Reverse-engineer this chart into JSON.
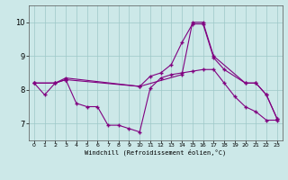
{
  "background_color": "#cce8e8",
  "line_color": "#800080",
  "marker": "+",
  "xlabel": "Windchill (Refroidissement éolien,°C)",
  "xlim": [
    -0.5,
    23.5
  ],
  "ylim": [
    6.5,
    10.5
  ],
  "yticks": [
    7,
    8,
    9,
    10
  ],
  "xticks": [
    0,
    1,
    2,
    3,
    4,
    5,
    6,
    7,
    8,
    9,
    10,
    11,
    12,
    13,
    14,
    15,
    16,
    17,
    18,
    19,
    20,
    21,
    22,
    23
  ],
  "series1_x": [
    0,
    1,
    2,
    3,
    4,
    5,
    6,
    7,
    8,
    9,
    10,
    11,
    12,
    13,
    14,
    15,
    16,
    17,
    18,
    19,
    20,
    21,
    22,
    23
  ],
  "series1_y": [
    8.2,
    7.85,
    8.2,
    8.3,
    7.6,
    7.5,
    7.5,
    6.95,
    6.95,
    6.85,
    6.75,
    8.05,
    8.35,
    8.45,
    8.5,
    8.55,
    8.6,
    8.6,
    8.2,
    7.8,
    7.5,
    7.35,
    7.1,
    7.1
  ],
  "series2_x": [
    0,
    2,
    3,
    10,
    11,
    12,
    13,
    14,
    15,
    16,
    17,
    18,
    20,
    21,
    22,
    23
  ],
  "series2_y": [
    8.2,
    8.2,
    8.3,
    8.1,
    8.4,
    8.5,
    8.75,
    9.4,
    9.95,
    9.95,
    8.95,
    8.6,
    8.2,
    8.2,
    7.85,
    7.15
  ],
  "series3_x": [
    0,
    2,
    3,
    10,
    14,
    15,
    16,
    17,
    20,
    21,
    22,
    23
  ],
  "series3_y": [
    8.2,
    8.2,
    8.35,
    8.1,
    8.45,
    10.0,
    10.0,
    9.0,
    8.2,
    8.2,
    7.85,
    7.15
  ],
  "figwidth": 3.2,
  "figheight": 2.0,
  "dpi": 100
}
